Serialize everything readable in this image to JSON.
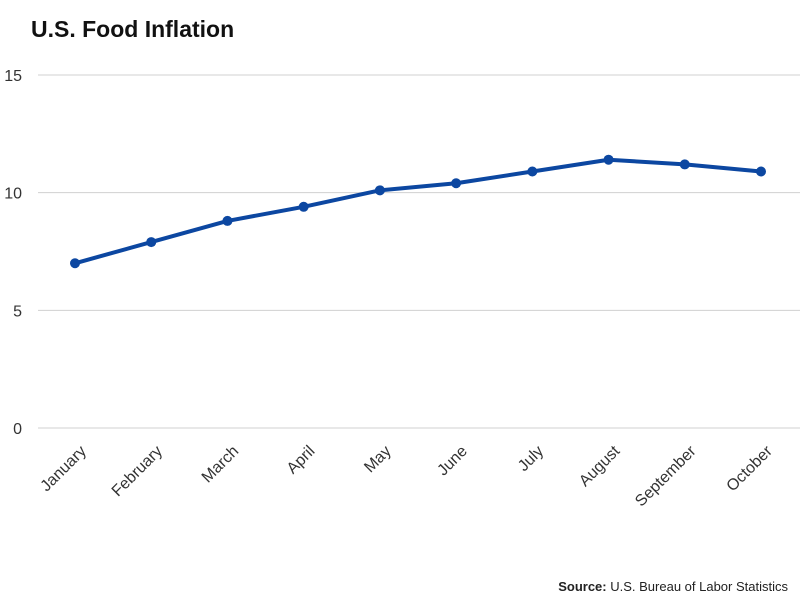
{
  "chart_data": {
    "type": "line",
    "title": "U.S. Food Inflation",
    "xlabel": "",
    "ylabel": "",
    "categories": [
      "January",
      "February",
      "March",
      "April",
      "May",
      "June",
      "July",
      "August",
      "September",
      "October"
    ],
    "series": [
      {
        "values": [
          7.0,
          7.9,
          8.8,
          9.4,
          10.1,
          10.4,
          10.9,
          11.4,
          11.2,
          10.9
        ],
        "color": "#0c47a1"
      }
    ],
    "ylim": [
      0,
      15
    ],
    "yticks": [
      0,
      5,
      10,
      15
    ],
    "grid": true,
    "legend": "none",
    "gridline_color": "#d0d0d0"
  },
  "source": {
    "label": "Source:",
    "text": "U.S. Bureau of Labor Statistics"
  }
}
